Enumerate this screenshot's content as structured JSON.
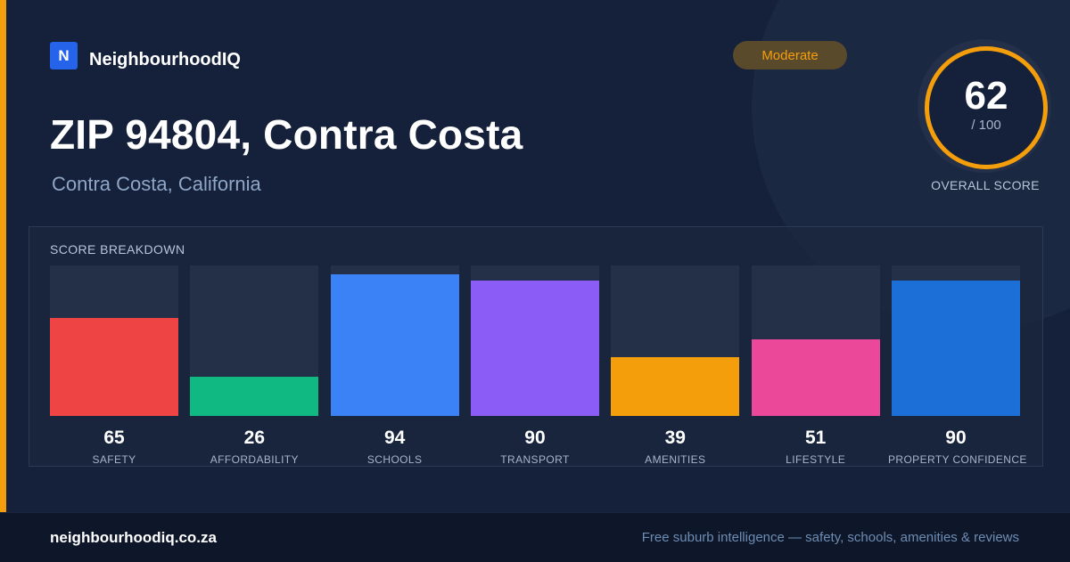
{
  "brand": {
    "logo_letter": "N",
    "name": "NeighbourhoodIQ"
  },
  "location": {
    "title": "ZIP 94804, Contra Costa",
    "subtitle": "Contra Costa, California"
  },
  "rating": {
    "label": "Moderate",
    "color": "#f59e0b"
  },
  "overall_score": {
    "value": "62",
    "max_label": "/ 100",
    "caption": "OVERALL SCORE",
    "ring_color": "#f59e0b"
  },
  "breakdown": {
    "title": "SCORE BREAKDOWN",
    "max": 100,
    "items": [
      {
        "label": "SAFETY",
        "value": 65,
        "color": "#ef4444"
      },
      {
        "label": "AFFORDABILITY",
        "value": 26,
        "color": "#10b981"
      },
      {
        "label": "SCHOOLS",
        "value": 94,
        "color": "#3b82f6"
      },
      {
        "label": "TRANSPORT",
        "value": 90,
        "color": "#8b5cf6"
      },
      {
        "label": "AMENITIES",
        "value": 39,
        "color": "#f59e0b"
      },
      {
        "label": "LIFESTYLE",
        "value": 51,
        "color": "#ec4899"
      },
      {
        "label": "PROPERTY CONFIDENCE",
        "value": 90,
        "color": "#1d6fd8"
      }
    ]
  },
  "chart_data": {
    "type": "bar",
    "title": "SCORE BREAKDOWN",
    "categories": [
      "SAFETY",
      "AFFORDABILITY",
      "SCHOOLS",
      "TRANSPORT",
      "AMENITIES",
      "LIFESTYLE",
      "PROPERTY CONFIDENCE"
    ],
    "values": [
      65,
      26,
      94,
      90,
      39,
      51,
      90
    ],
    "ylim": [
      0,
      100
    ],
    "xlabel": "",
    "ylabel": ""
  },
  "footer": {
    "url": "neighbourhoodiq.co.za",
    "tagline": "Free suburb intelligence — safety, schools, amenities & reviews"
  }
}
